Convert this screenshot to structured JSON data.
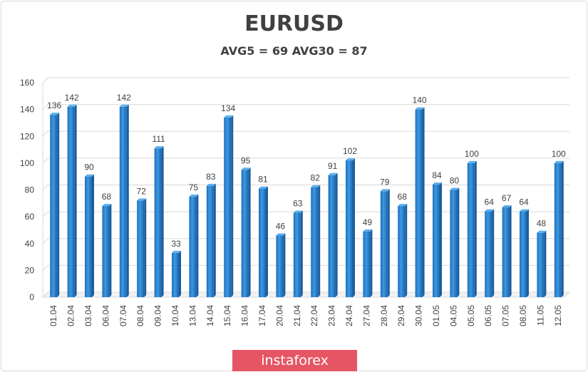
{
  "chart_data": {
    "type": "bar",
    "title": "EURUSD",
    "subtitle": "AVG5 = 69 AVG30 = 87",
    "categories": [
      "01.04",
      "02.04",
      "03.04",
      "06.04",
      "07.04",
      "08.04",
      "09.04",
      "10.04",
      "13.04",
      "14.04",
      "15.04",
      "16.04",
      "17.04",
      "20.04",
      "21.04",
      "22.04",
      "23.04",
      "24.04",
      "27.04",
      "28.04",
      "29.04",
      "30.04",
      "01.05",
      "04.05",
      "05.05",
      "06.05",
      "07.05",
      "08.05",
      "11.05",
      "12.05"
    ],
    "values": [
      136,
      142,
      90,
      68,
      142,
      72,
      111,
      33,
      75,
      83,
      134,
      95,
      81,
      46,
      63,
      82,
      91,
      102,
      49,
      79,
      68,
      140,
      84,
      80,
      100,
      64,
      67,
      64,
      48,
      100
    ],
    "ylim": [
      0,
      160
    ],
    "yticks": [
      0,
      20,
      40,
      60,
      80,
      100,
      120,
      140,
      160
    ],
    "grid": true,
    "bar_color": "#2f8ad8",
    "data_labels": true
  },
  "watermark": "instaforex",
  "colors": {
    "watermark_bg": "#e55564",
    "text": "#404040",
    "grid": "#d9d9d9"
  }
}
